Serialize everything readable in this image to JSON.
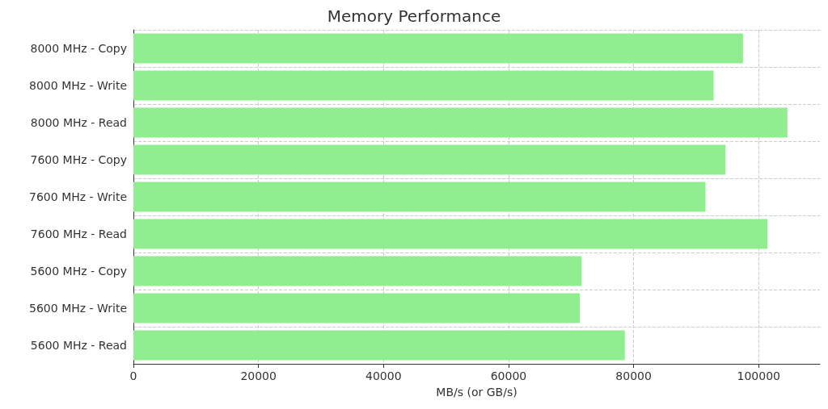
{
  "chart_data": {
    "type": "bar",
    "orientation": "horizontal",
    "title": "Memory Performance",
    "xlabel": "MB/s (or GB/s)",
    "categories": [
      "8000 MHz - Copy",
      "8000 MHz - Write",
      "8000 MHz - Read",
      "7600 MHz - Copy",
      "7600 MHz - Write",
      "7600 MHz - Read",
      "5600 MHz - Copy",
      "5600 MHz - Write",
      "5600 MHz - Read"
    ],
    "values": [
      97500,
      92800,
      104600,
      94700,
      91500,
      101400,
      71700,
      71400,
      78600
    ],
    "color": "#90ee90",
    "xlim": [
      0,
      109800
    ],
    "xticks": [
      0,
      20000,
      40000,
      60000,
      80000,
      100000
    ],
    "grid": true
  }
}
